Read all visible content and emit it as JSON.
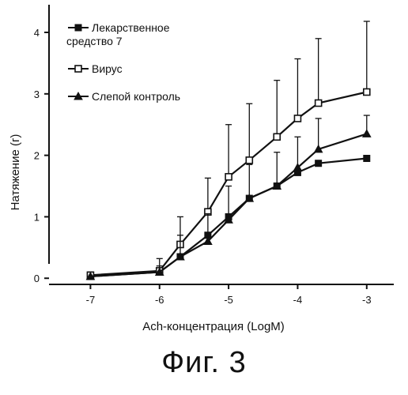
{
  "figure_caption": "Фиг. 3",
  "chart_data": {
    "type": "line",
    "xlabel": "Ach-концентрация (LogM)",
    "ylabel": "Натяжение (г)",
    "xlim": [
      -7.6,
      -2.7
    ],
    "ylim": [
      -0.1,
      4.45
    ],
    "x_ticks": [
      -7,
      -6,
      -5,
      -4,
      -3
    ],
    "x_tick_labels": [
      "-7",
      "-6",
      "-5",
      "-4",
      "-3"
    ],
    "y_ticks": [
      0,
      1,
      2,
      3,
      4
    ],
    "y_tick_labels": [
      "0",
      "1",
      "2",
      "3",
      "4"
    ],
    "grid": false,
    "legend_position": "top-left",
    "x": [
      -7,
      -6,
      -5.7,
      -5.3,
      -5,
      -4.7,
      -4.3,
      -4,
      -3.7,
      -3
    ],
    "series": [
      {
        "name": "Лекарственное средство 7",
        "legend_lines": [
          "Лекарственное",
          "средство 7"
        ],
        "marker": "filled-square",
        "values": [
          0.03,
          0.1,
          0.35,
          0.7,
          1.0,
          1.3,
          1.5,
          1.72,
          1.87,
          1.95
        ],
        "error_up": [
          0.0,
          0.0,
          0.0,
          0.0,
          0.0,
          0.0,
          0.0,
          0.0,
          0.0,
          0.0
        ]
      },
      {
        "name": "Вирус",
        "legend_lines": [
          "Вирус"
        ],
        "marker": "open-square",
        "values": [
          0.05,
          0.12,
          0.55,
          1.08,
          1.65,
          1.92,
          2.3,
          2.6,
          2.85,
          3.03
        ],
        "error_up": [
          0.05,
          0.2,
          0.45,
          0.55,
          0.85,
          0.92,
          0.92,
          0.97,
          1.05,
          1.15
        ]
      },
      {
        "name": "Слепой контроль",
        "legend_lines": [
          "Слепой контроль"
        ],
        "marker": "filled-triangle",
        "values": [
          0.03,
          0.1,
          0.35,
          0.6,
          0.95,
          1.3,
          1.5,
          1.8,
          2.1,
          2.35
        ],
        "error_up": [
          0.0,
          0.1,
          0.35,
          0.45,
          0.55,
          0.55,
          0.55,
          0.5,
          0.5,
          0.3
        ]
      }
    ]
  }
}
